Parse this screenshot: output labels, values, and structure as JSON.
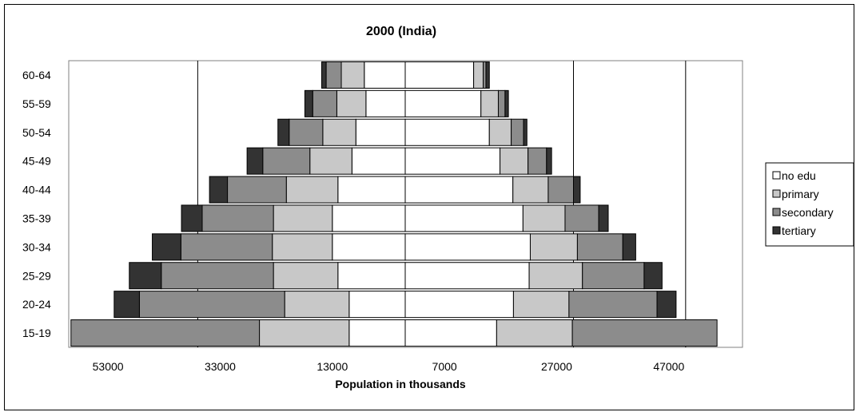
{
  "chart_data": {
    "type": "bar",
    "orientation": "horizontal",
    "layout": "population-pyramid",
    "title": "2000 (India)",
    "xlabel": "Population in thousands",
    "ylabel": "",
    "categories": [
      "15-19",
      "20-24",
      "25-29",
      "30-34",
      "35-39",
      "40-44",
      "45-49",
      "50-54",
      "55-59",
      "60-64"
    ],
    "xlim": [
      -60000,
      60000
    ],
    "xticks": [
      -53000,
      -33000,
      -13000,
      7000,
      27000,
      47000
    ],
    "xtick_labels": [
      "53000",
      "33000",
      "13000",
      "7000",
      "27000",
      "47000"
    ],
    "vertical_gridlines": [
      -37000,
      30000,
      50000
    ],
    "legend_position": "right",
    "colors": {
      "no edu": "#ffffff",
      "primary": "#c8c8c8",
      "secondary": "#8c8c8c",
      "tertiary": "#333333"
    },
    "sides": [
      {
        "side": "left",
        "series": [
          {
            "name": "no edu",
            "values": [
              10000,
              10000,
              12000,
              13000,
              13000,
              12000,
              9500,
              8800,
              7000,
              7300
            ]
          },
          {
            "name": "primary",
            "values": [
              16000,
              11500,
              11500,
              10700,
              10500,
              9200,
              7500,
              5900,
              5200,
              4100
            ]
          },
          {
            "name": "secondary",
            "values": [
              33600,
              25900,
              20000,
              16300,
              12700,
              10500,
              8400,
              6000,
              4300,
              2700
            ]
          },
          {
            "name": "tertiary",
            "values": [
              0,
              4500,
              5700,
              5100,
              3700,
              3200,
              2800,
              2000,
              1400,
              800
            ]
          }
        ]
      },
      {
        "side": "right",
        "series": [
          {
            "name": "no edu",
            "values": [
              16300,
              19300,
              22100,
              22300,
              21000,
              19200,
              16900,
              15000,
              13500,
              12200
            ]
          },
          {
            "name": "primary",
            "values": [
              13500,
              9900,
              9500,
              8400,
              7500,
              6300,
              5000,
              3900,
              3100,
              1700
            ]
          },
          {
            "name": "secondary",
            "values": [
              25800,
              15700,
              11000,
              8100,
              6000,
              4500,
              3300,
              2200,
              1200,
              500
            ]
          },
          {
            "name": "tertiary",
            "values": [
              0,
              3400,
              3200,
              2300,
              1700,
              1200,
              900,
              600,
              600,
              600
            ]
          }
        ]
      }
    ]
  }
}
